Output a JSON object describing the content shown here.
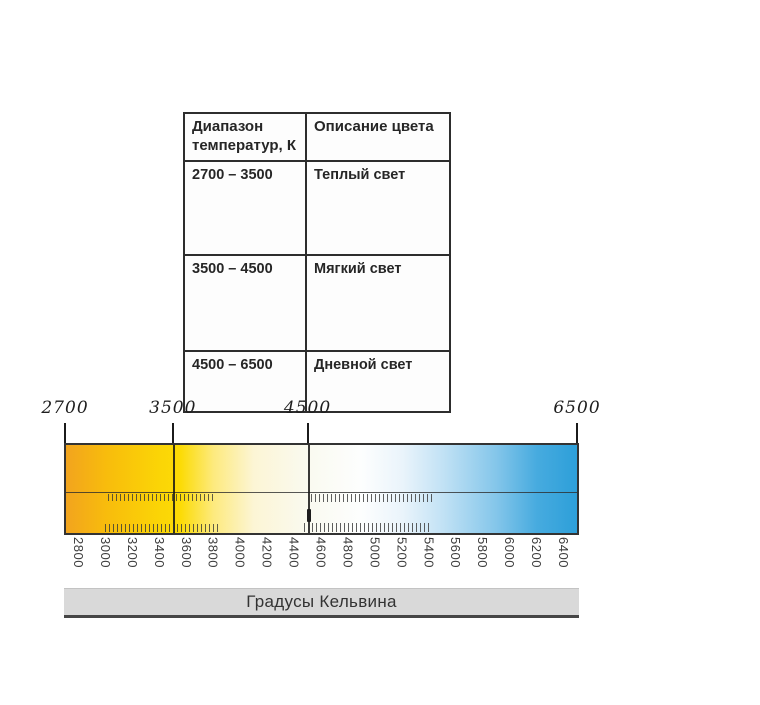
{
  "table": {
    "col1_header": "Диапазон температур, К",
    "col2_header": "Описание цвета",
    "rows": [
      {
        "range": "2700 – 3500",
        "description": "Теплый  свет"
      },
      {
        "range": "3500 – 4500",
        "description": "Мягкий свет"
      },
      {
        "range": "4500 – 6500",
        "description": "Дневной свет"
      }
    ]
  },
  "scale": {
    "title": "Градусы Кельвина",
    "unit": "K",
    "min": 2700,
    "max": 6500,
    "top_labels": [
      {
        "text": "2700",
        "k": 2700
      },
      {
        "text": "3500",
        "k": 3500
      },
      {
        "text": "4500",
        "k": 4500
      },
      {
        "text": "6500",
        "k": 6500
      }
    ],
    "dividers": [
      3500,
      4500
    ],
    "bottom_labels": [
      "2800",
      "3000",
      "3200",
      "3400",
      "3600",
      "3800",
      "4000",
      "4200",
      "4400",
      "4600",
      "4800",
      "5000",
      "5200",
      "5400",
      "5600",
      "5800",
      "6000",
      "6200",
      "6400"
    ],
    "gradient": [
      {
        "k": 2700,
        "color": "#F2A41E"
      },
      {
        "k": 3000,
        "color": "#F8BC0C"
      },
      {
        "k": 3400,
        "color": "#FBD506"
      },
      {
        "k": 3550,
        "color": "#FCDB05"
      },
      {
        "k": 3800,
        "color": "#FDEA7E"
      },
      {
        "k": 4100,
        "color": "#FCF5D5"
      },
      {
        "k": 4500,
        "color": "#FAFAF0"
      },
      {
        "k": 4900,
        "color": "#FDFEFE"
      },
      {
        "k": 5200,
        "color": "#EAF4FB"
      },
      {
        "k": 5500,
        "color": "#C2E2F5"
      },
      {
        "k": 5900,
        "color": "#84C6EA"
      },
      {
        "k": 6200,
        "color": "#47ABDF"
      },
      {
        "k": 6500,
        "color": "#2D9FD9"
      }
    ]
  }
}
